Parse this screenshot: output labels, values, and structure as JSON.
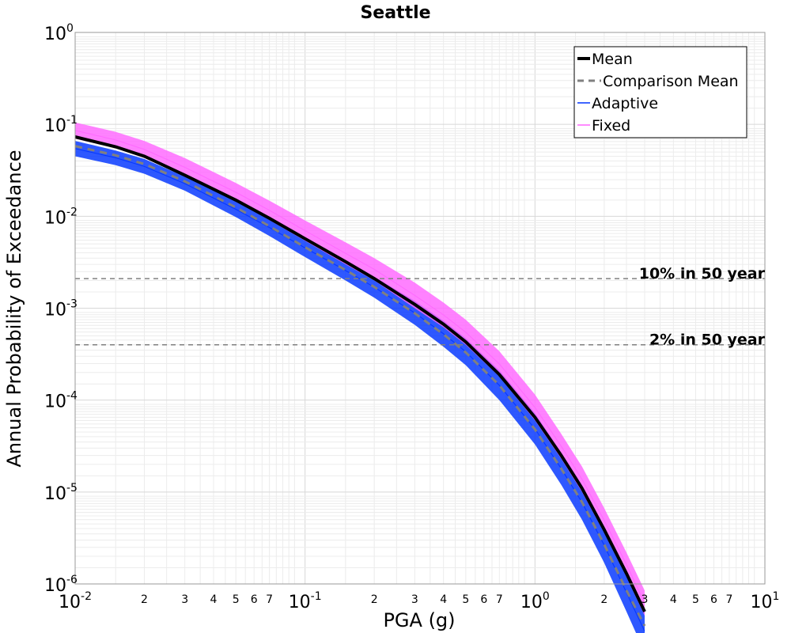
{
  "chart_data": {
    "type": "line",
    "title": "Seattle",
    "xlabel": "PGA (g)",
    "ylabel": "Annual Probability of Exceedance",
    "xscale": "log",
    "yscale": "log",
    "xlim": [
      0.01,
      10
    ],
    "ylim": [
      1e-06,
      1
    ],
    "grid": true,
    "legend_position": "top-right",
    "x_major_ticks": [
      {
        "value": 0.01,
        "base": "10",
        "exp": "-2"
      },
      {
        "value": 0.1,
        "base": "10",
        "exp": "-1"
      },
      {
        "value": 1,
        "base": "10",
        "exp": "0"
      },
      {
        "value": 10,
        "base": "10",
        "exp": "1"
      }
    ],
    "x_minor_labels": [
      "2",
      "3",
      "4",
      "5",
      "6",
      "7"
    ],
    "y_major_ticks": [
      {
        "value": 1,
        "base": "10",
        "exp": "0"
      },
      {
        "value": 0.1,
        "base": "10",
        "exp": "-1"
      },
      {
        "value": 0.01,
        "base": "10",
        "exp": "-2"
      },
      {
        "value": 0.001,
        "base": "10",
        "exp": "-3"
      },
      {
        "value": 0.0001,
        "base": "10",
        "exp": "-4"
      },
      {
        "value": 1e-05,
        "base": "10",
        "exp": "-5"
      },
      {
        "value": 1e-06,
        "base": "10",
        "exp": "-6"
      }
    ],
    "x": [
      0.01,
      0.015,
      0.02,
      0.03,
      0.05,
      0.07,
      0.1,
      0.15,
      0.2,
      0.3,
      0.4,
      0.5,
      0.7,
      1.0,
      1.3,
      1.6,
      2.0,
      2.5,
      3.0
    ],
    "series": [
      {
        "name": "Mean",
        "style": "solid",
        "color": "#000000",
        "values": [
          0.073,
          0.057,
          0.045,
          0.028,
          0.015,
          0.0095,
          0.0057,
          0.0032,
          0.0021,
          0.0011,
          0.00067,
          0.00043,
          0.00019,
          6.5e-05,
          2.5e-05,
          1.1e-05,
          3.9e-06,
          1.3e-06,
          5e-07
        ]
      },
      {
        "name": "Comparison Mean",
        "style": "dashed",
        "color": "#808080",
        "values": [
          0.058,
          0.046,
          0.037,
          0.024,
          0.0125,
          0.0078,
          0.0046,
          0.0026,
          0.0017,
          0.00088,
          0.00052,
          0.00033,
          0.000145,
          4.8e-05,
          1.8e-05,
          7.8e-06,
          2.7e-06,
          8.5e-07,
          3.5e-07
        ]
      },
      {
        "name": "Adaptive",
        "style": "band",
        "color": "#0033ff",
        "lower": [
          0.045,
          0.036,
          0.029,
          0.019,
          0.0098,
          0.0061,
          0.0036,
          0.002,
          0.0013,
          0.00066,
          0.00038,
          0.00024,
          0.0001,
          3.3e-05,
          1.2e-05,
          5e-06,
          1.7e-06,
          5e-07,
          1.8e-07
        ],
        "upper": [
          0.066,
          0.052,
          0.042,
          0.027,
          0.0145,
          0.0093,
          0.0057,
          0.0033,
          0.0022,
          0.0012,
          0.00073,
          0.00047,
          0.00021,
          7.2e-05,
          2.7e-05,
          1.2e-05,
          4.1e-06,
          1.3e-06,
          5.2e-07
        ]
      },
      {
        "name": "Fixed",
        "style": "band",
        "color": "#ff66ff",
        "lower": [
          0.07,
          0.055,
          0.043,
          0.027,
          0.0145,
          0.0091,
          0.0054,
          0.003,
          0.002,
          0.001,
          0.00062,
          0.0004,
          0.00018,
          6e-05,
          2.3e-05,
          1e-05,
          3.6e-06,
          1.2e-06,
          4.5e-07
        ],
        "upper": [
          0.105,
          0.083,
          0.066,
          0.043,
          0.023,
          0.0148,
          0.009,
          0.0052,
          0.0035,
          0.0019,
          0.00115,
          0.00075,
          0.00034,
          0.000115,
          4.3e-05,
          1.9e-05,
          6.7e-06,
          2.2e-06,
          8.5e-07
        ]
      }
    ],
    "reference_lines": [
      {
        "label": "10% in 50 year",
        "value": 0.0021
      },
      {
        "label": "2% in 50 year",
        "value": 0.0004
      }
    ]
  }
}
